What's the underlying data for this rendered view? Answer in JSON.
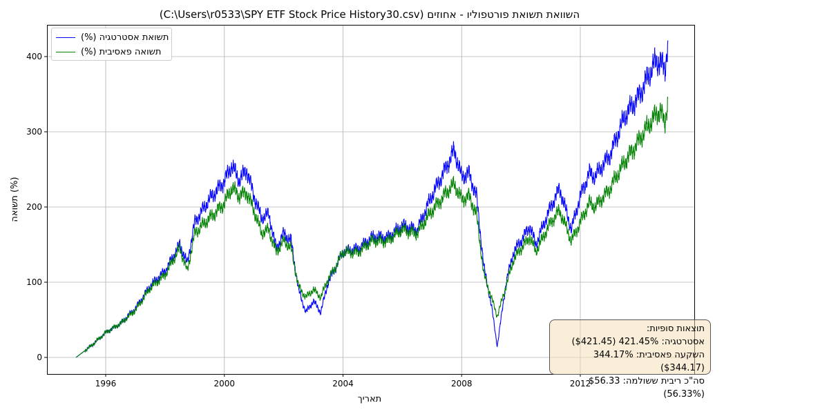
{
  "chart_data": {
    "type": "line",
    "title": "השוואת תשואת פורטפוליו - אחוזים (C:\\Users\\r0533\\SPY ETF Stock Price History30.csv)",
    "xlabel": "תאריך",
    "ylabel": "תשואה (%)",
    "xlim": [
      1994.5,
      2015.5
    ],
    "ylim": [
      -22,
      442
    ],
    "xticks": [
      1996,
      2000,
      2004,
      2008,
      2012
    ],
    "xtick_labels": [
      "1996",
      "2000",
      "2004",
      "2008",
      "2012"
    ],
    "yticks": [
      0,
      100,
      200,
      300,
      400
    ],
    "ytick_labels": [
      "0",
      "100",
      "200",
      "300",
      "400"
    ],
    "grid": true,
    "legend_placement": "top-left",
    "series": [
      {
        "name": "תשואת אסטרטגיה (%)",
        "color": "#0000ff",
        "x": [
          1995.0,
          1995.5,
          1996.0,
          1996.5,
          1997.0,
          1997.5,
          1998.0,
          1998.5,
          1998.75,
          1999.0,
          1999.5,
          2000.0,
          2000.25,
          2000.5,
          2000.75,
          2001.0,
          2001.25,
          2001.5,
          2001.75,
          2002.0,
          2002.25,
          2002.5,
          2002.75,
          2003.0,
          2003.25,
          2003.5,
          2003.75,
          2004.0,
          2004.5,
          2005.0,
          2005.5,
          2006.0,
          2006.5,
          2007.0,
          2007.5,
          2007.75,
          2008.0,
          2008.25,
          2008.5,
          2008.75,
          2009.0,
          2009.2,
          2009.5,
          2009.75,
          2010.0,
          2010.3,
          2010.5,
          2011.0,
          2011.3,
          2011.7,
          2012.0,
          2012.3,
          2012.5,
          2013.0,
          2013.5,
          2014.0,
          2014.5,
          2014.7,
          2014.85,
          2014.95
        ],
        "y": [
          0,
          15,
          33,
          45,
          65,
          95,
          115,
          150,
          125,
          180,
          210,
          235,
          255,
          235,
          250,
          215,
          185,
          190,
          145,
          165,
          155,
          90,
          60,
          75,
          60,
          100,
          120,
          140,
          145,
          160,
          160,
          175,
          170,
          215,
          255,
          275,
          240,
          245,
          215,
          120,
          70,
          15,
          100,
          140,
          155,
          175,
          150,
          200,
          225,
          170,
          215,
          245,
          240,
          270,
          320,
          350,
          390,
          395,
          380,
          421.45
        ]
      },
      {
        "name": "תשואה פאסיבית (%)",
        "color": "#008000",
        "x": [
          1995.0,
          1995.5,
          1996.0,
          1996.5,
          1997.0,
          1997.5,
          1998.0,
          1998.5,
          1998.75,
          1999.0,
          1999.5,
          2000.0,
          2000.25,
          2000.5,
          2000.75,
          2001.0,
          2001.25,
          2001.5,
          2001.75,
          2002.0,
          2002.25,
          2002.5,
          2002.75,
          2003.0,
          2003.25,
          2003.5,
          2003.75,
          2004.0,
          2004.5,
          2005.0,
          2005.5,
          2006.0,
          2006.5,
          2007.0,
          2007.5,
          2007.75,
          2008.0,
          2008.25,
          2008.5,
          2008.75,
          2009.0,
          2009.2,
          2009.5,
          2009.75,
          2010.0,
          2010.3,
          2010.5,
          2011.0,
          2011.3,
          2011.7,
          2012.0,
          2012.3,
          2012.5,
          2013.0,
          2013.5,
          2014.0,
          2014.5,
          2014.7,
          2014.85,
          2014.95
        ],
        "y": [
          0,
          15,
          33,
          45,
          63,
          92,
          110,
          145,
          115,
          165,
          185,
          205,
          225,
          215,
          220,
          195,
          165,
          170,
          140,
          155,
          145,
          95,
          80,
          90,
          80,
          105,
          120,
          140,
          140,
          155,
          155,
          170,
          165,
          195,
          220,
          230,
          210,
          215,
          190,
          110,
          80,
          55,
          95,
          130,
          145,
          160,
          140,
          180,
          195,
          155,
          180,
          205,
          200,
          225,
          260,
          290,
          320,
          330,
          310,
          344.17
        ]
      }
    ]
  },
  "summary": {
    "title": "תוצאות סופיות:",
    "strategy": "אסטרטגיה: 421.45% ($421.45)",
    "passive": "השקעה פאסיבית: 344.17% ($344.17)",
    "dividends": "סה\"כ ריבית ששולמה: $56.33 (56.33%)"
  }
}
